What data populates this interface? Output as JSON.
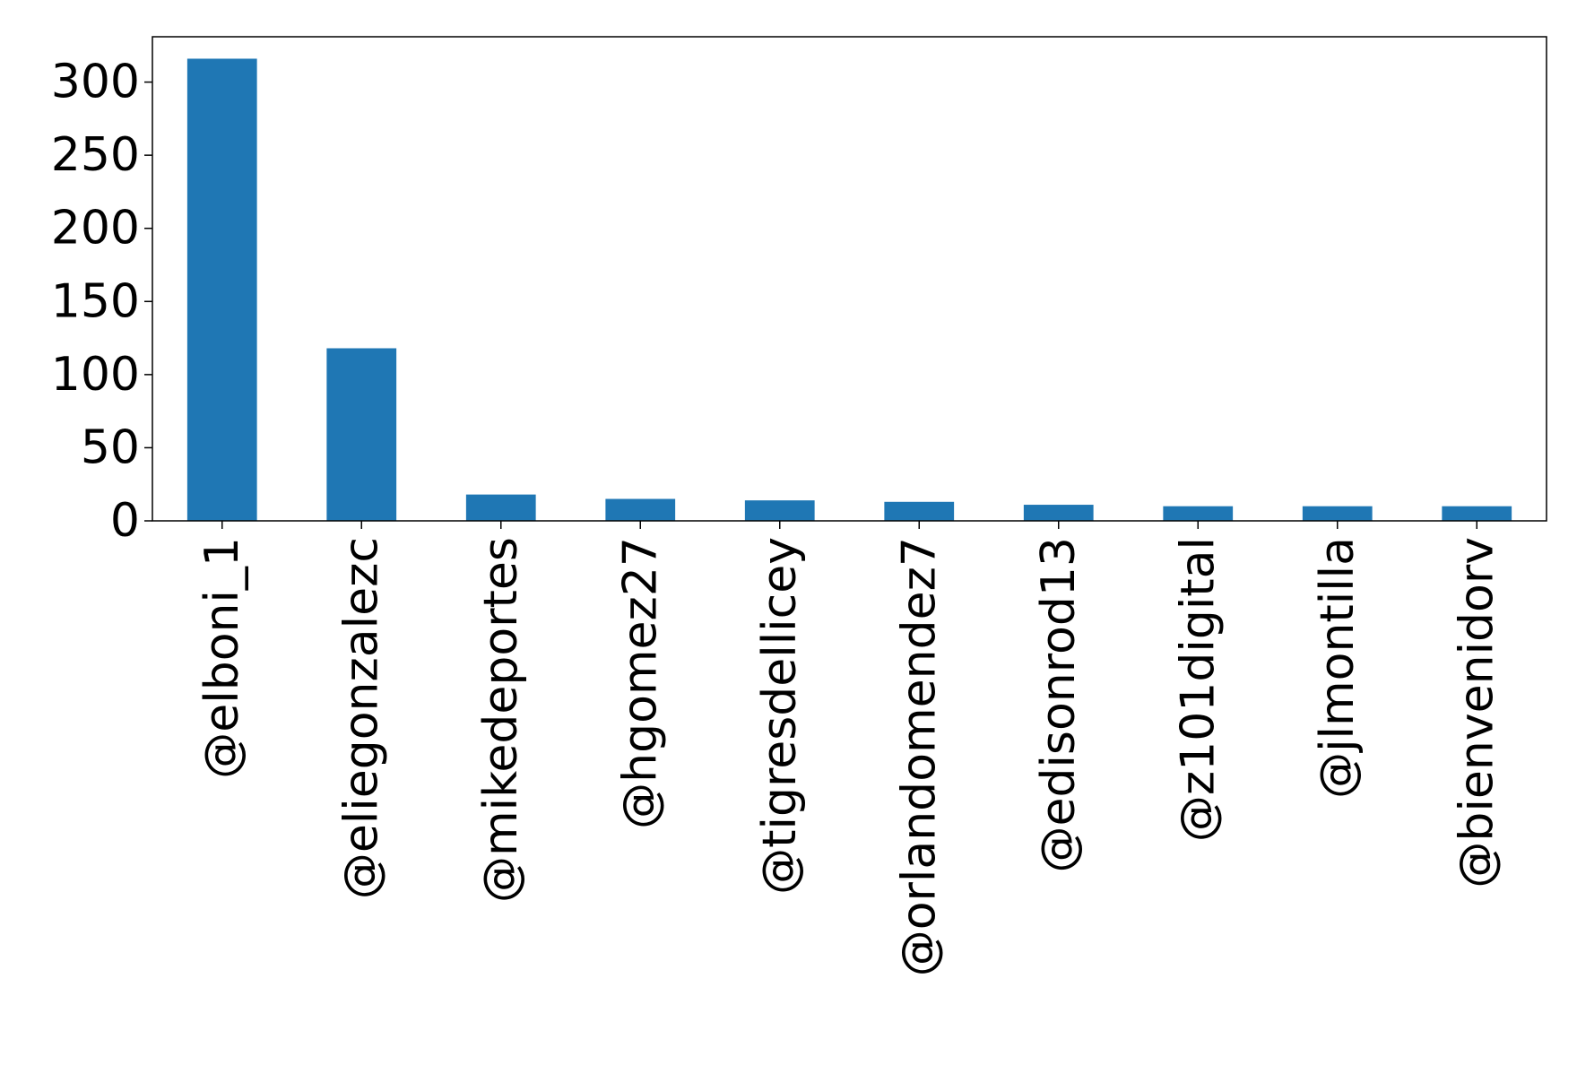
{
  "chart_data": {
    "type": "bar",
    "title": "",
    "xlabel": "",
    "ylabel": "",
    "categories": [
      "@elboni_1",
      "@eliegonzalezc",
      "@mikedeportes",
      "@hgomez27",
      "@tigresdellicey",
      "@orlandomendez7",
      "@edisonrod13",
      "@z101digital",
      "@jlmontilla",
      "@bienvenidorv"
    ],
    "values": [
      316,
      118,
      18,
      15,
      14,
      13,
      11,
      10,
      10,
      10
    ],
    "ylim": [
      0,
      331
    ],
    "yticks": [
      0,
      50,
      100,
      150,
      200,
      250,
      300
    ],
    "bar_color": "#1f77b4",
    "grid": false,
    "legend": "none"
  }
}
